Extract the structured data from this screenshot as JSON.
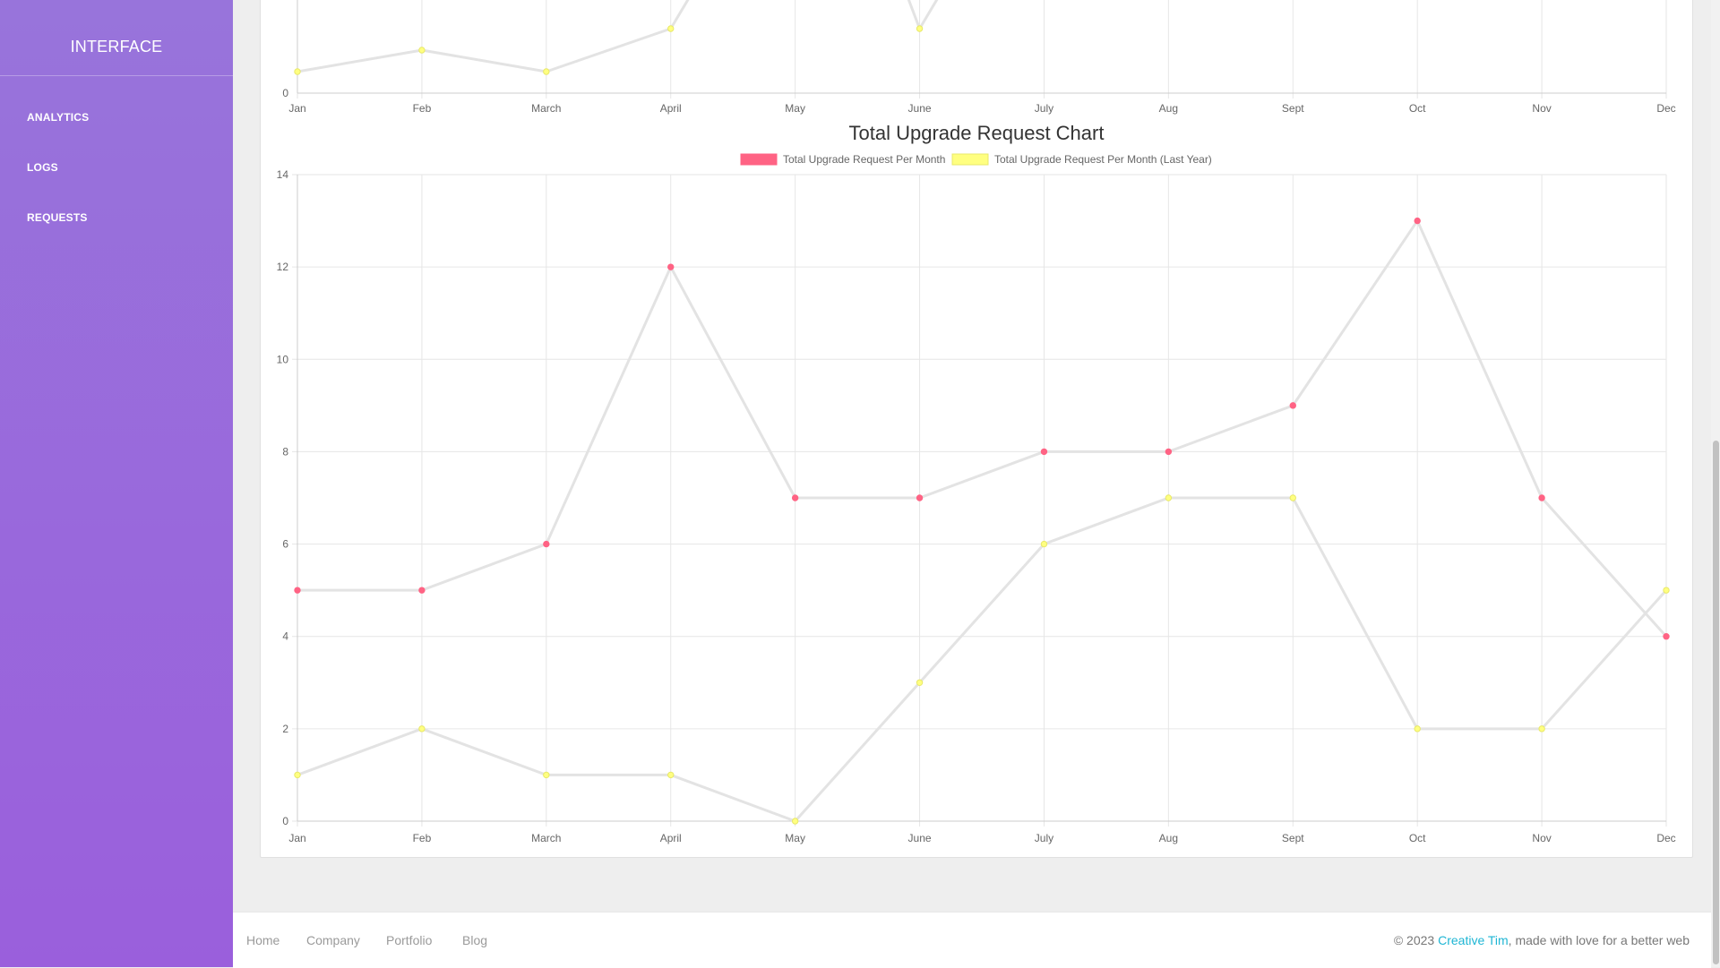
{
  "sidebar": {
    "brand": "INTERFACE",
    "items": [
      {
        "label": "ANALYTICS"
      },
      {
        "label": "LOGS"
      },
      {
        "label": "REQUESTS"
      }
    ]
  },
  "footer": {
    "links": [
      "Home",
      "Company",
      "Portfolio",
      "Blog"
    ],
    "copyright_prefix": "© 2023 ",
    "copyright_brand": "Creative Tim",
    "copyright_suffix": ", made with love for a better web"
  },
  "colors": {
    "sidebar_top": "#9874db",
    "sidebar_bottom": "#9a5fdc",
    "series_current": "#ff6384",
    "series_last_year": "#ffff80",
    "line": "#e3e3e3",
    "link_accent": "#1fb6d4"
  },
  "chart_data": [
    {
      "type": "line",
      "title": "",
      "categories": [
        "Jan",
        "Feb",
        "March",
        "April",
        "May",
        "June",
        "July",
        "Aug",
        "Sept",
        "Oct",
        "Nov",
        "Dec"
      ],
      "series": [
        {
          "name": "",
          "values": [
            0.5,
            1,
            0.5,
            1.5,
            null,
            1.5,
            null,
            null,
            null,
            null,
            null,
            null
          ]
        }
      ],
      "yticks_visible": [
        0
      ],
      "partially_visible": true
    },
    {
      "type": "line",
      "title": "Total Upgrade Request Chart",
      "categories": [
        "Jan",
        "Feb",
        "March",
        "April",
        "May",
        "June",
        "July",
        "Aug",
        "Sept",
        "Oct",
        "Nov",
        "Dec"
      ],
      "series": [
        {
          "name": "Total Upgrade Request Per Month",
          "values": [
            5,
            5,
            6,
            12,
            7,
            7,
            8,
            8,
            9,
            13,
            7,
            4
          ]
        },
        {
          "name": "Total Upgrade Request Per Month (Last Year)",
          "values": [
            1,
            2,
            1,
            1,
            0,
            3,
            6,
            7,
            7,
            2,
            2,
            5
          ]
        }
      ],
      "ylim": [
        0,
        14
      ],
      "yticks": [
        0,
        2,
        4,
        6,
        8,
        10,
        12,
        14
      ],
      "grid": true,
      "legend": "top-center"
    }
  ]
}
